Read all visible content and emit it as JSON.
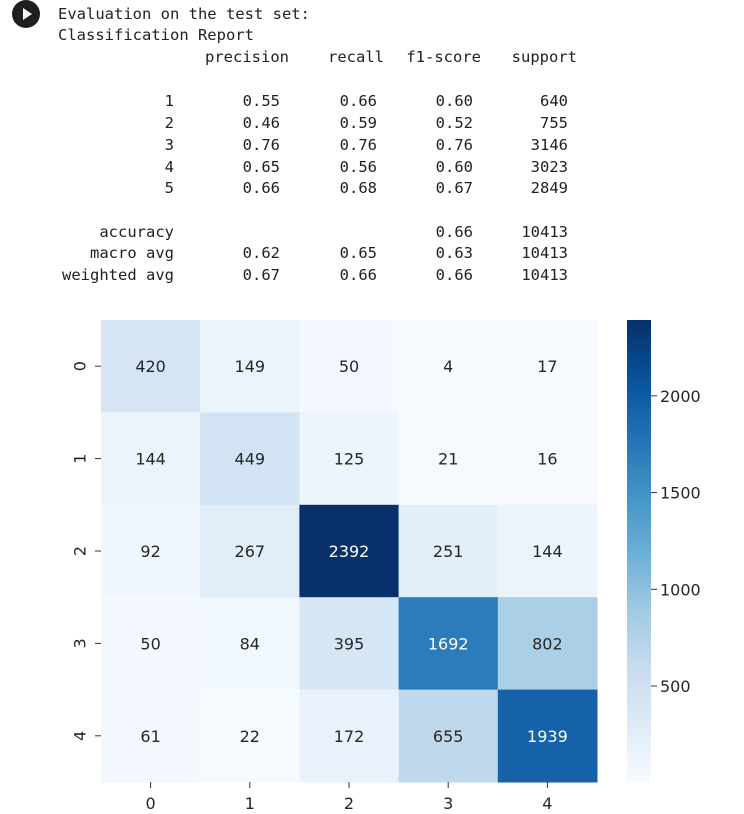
{
  "output": {
    "line1": "Evaluation on the test set:",
    "line2": "Classification Report",
    "headers": [
      "precision",
      "recall",
      "f1-score",
      "support"
    ],
    "rows": [
      {
        "label": "1",
        "precision": "0.55",
        "recall": "0.66",
        "f1": "0.60",
        "support": "640"
      },
      {
        "label": "2",
        "precision": "0.46",
        "recall": "0.59",
        "f1": "0.52",
        "support": "755"
      },
      {
        "label": "3",
        "precision": "0.76",
        "recall": "0.76",
        "f1": "0.76",
        "support": "3146"
      },
      {
        "label": "4",
        "precision": "0.65",
        "recall": "0.56",
        "f1": "0.60",
        "support": "3023"
      },
      {
        "label": "5",
        "precision": "0.66",
        "recall": "0.68",
        "f1": "0.67",
        "support": "2849"
      }
    ],
    "summary": [
      {
        "label": "accuracy",
        "precision": "",
        "recall": "",
        "f1": "0.66",
        "support": "10413"
      },
      {
        "label": "macro avg",
        "precision": "0.62",
        "recall": "0.65",
        "f1": "0.63",
        "support": "10413"
      },
      {
        "label": "weighted avg",
        "precision": "0.67",
        "recall": "0.66",
        "f1": "0.66",
        "support": "10413"
      }
    ]
  },
  "chart_data": {
    "type": "heatmap",
    "x_labels": [
      "0",
      "1",
      "2",
      "3",
      "4"
    ],
    "y_labels": [
      "0",
      "1",
      "2",
      "3",
      "4"
    ],
    "matrix": [
      [
        420,
        149,
        50,
        4,
        17
      ],
      [
        144,
        449,
        125,
        21,
        16
      ],
      [
        92,
        267,
        2392,
        251,
        144
      ],
      [
        50,
        84,
        395,
        1692,
        802
      ],
      [
        61,
        22,
        172,
        655,
        1939
      ]
    ],
    "colormap": "Blues",
    "colorbar": {
      "ticks": [
        500,
        1000,
        1500,
        2000
      ],
      "range": [
        4,
        2392
      ]
    },
    "colors": {
      "low": "#f7fbff",
      "high": "#08306b"
    }
  }
}
